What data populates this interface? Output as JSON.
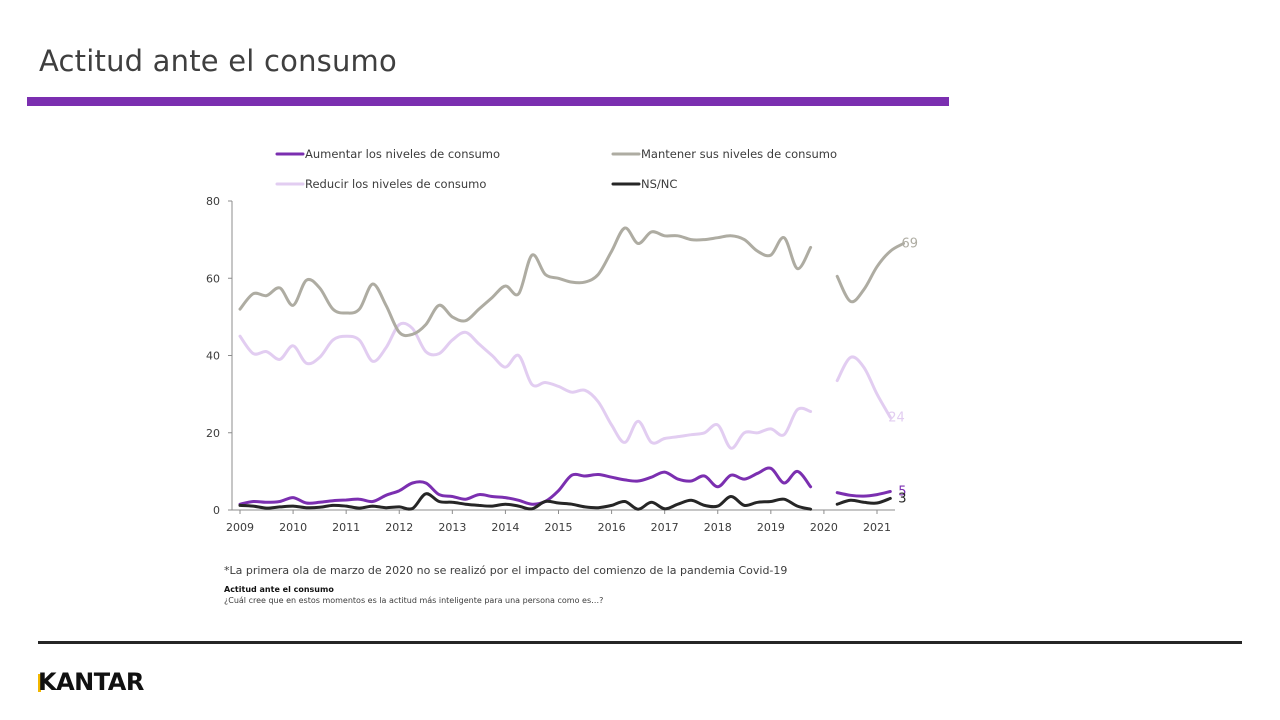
{
  "page": {
    "title": "Actitud ante el consumo",
    "footnote": "*La primera ola de marzo de 2020 no se realizó por el impacto del comienzo de la pandemia Covid-19",
    "question_title": "Actitud ante el consumo",
    "question_text": "¿Cuál cree que en estos momentos es la actitud más inteligente para una persona como es…?",
    "brand": "KANTAR",
    "colors": {
      "accent": "#7b2fb0",
      "brand_mark": "#f2b700"
    }
  },
  "chart_data": {
    "type": "line",
    "xlabel": "",
    "ylabel": "",
    "ylim": [
      0,
      80
    ],
    "yticks": [
      0,
      20,
      40,
      60,
      80
    ],
    "xticks": [
      "2009",
      "2010",
      "2011",
      "2012",
      "2013",
      "2014",
      "2015",
      "2016",
      "2017",
      "2018",
      "2019",
      "2020",
      "2021"
    ],
    "grid": false,
    "legend_position": "top",
    "series": [
      {
        "name": "Aumentar los niveles de consumo",
        "color": "#7b2fb0",
        "end_label": "5",
        "segments": [
          [
            [
              2009.0,
              1.5
            ],
            [
              2009.25,
              2.2
            ],
            [
              2009.5,
              2
            ],
            [
              2009.75,
              2.2
            ],
            [
              2010.0,
              3.2
            ],
            [
              2010.25,
              1.8
            ],
            [
              2010.5,
              2
            ],
            [
              2010.75,
              2.4
            ],
            [
              2011.0,
              2.6
            ],
            [
              2011.25,
              2.8
            ],
            [
              2011.5,
              2.2
            ],
            [
              2011.75,
              3.8
            ],
            [
              2012.0,
              5
            ],
            [
              2012.25,
              7
            ],
            [
              2012.5,
              7
            ],
            [
              2012.75,
              4
            ],
            [
              2013.0,
              3.5
            ],
            [
              2013.25,
              2.8
            ],
            [
              2013.5,
              4
            ],
            [
              2013.75,
              3.5
            ],
            [
              2014.0,
              3.2
            ],
            [
              2014.25,
              2.5
            ],
            [
              2014.5,
              1.5
            ],
            [
              2014.75,
              2.2
            ],
            [
              2015.0,
              5
            ],
            [
              2015.25,
              9
            ],
            [
              2015.5,
              8.8
            ],
            [
              2015.75,
              9.2
            ],
            [
              2016.0,
              8.5
            ],
            [
              2016.25,
              7.8
            ],
            [
              2016.5,
              7.5
            ],
            [
              2016.75,
              8.5
            ],
            [
              2017.0,
              9.8
            ],
            [
              2017.25,
              8
            ],
            [
              2017.5,
              7.5
            ],
            [
              2017.75,
              8.8
            ],
            [
              2018.0,
              6
            ],
            [
              2018.25,
              9
            ],
            [
              2018.5,
              8
            ],
            [
              2018.75,
              9.5
            ],
            [
              2019.0,
              10.8
            ],
            [
              2019.25,
              7
            ],
            [
              2019.5,
              10
            ],
            [
              2019.75,
              6
            ]
          ],
          [
            [
              2020.25,
              4.5
            ],
            [
              2020.5,
              3.8
            ],
            [
              2020.75,
              3.6
            ],
            [
              2021.0,
              4
            ],
            [
              2021.25,
              4.8
            ]
          ]
        ]
      },
      {
        "name": "Mantener sus niveles de consumo",
        "color": "#aeaca2",
        "end_label": "69",
        "segments": [
          [
            [
              2009.0,
              52
            ],
            [
              2009.25,
              56
            ],
            [
              2009.5,
              55.5
            ],
            [
              2009.75,
              57.5
            ],
            [
              2010.0,
              53
            ],
            [
              2010.25,
              59.5
            ],
            [
              2010.5,
              57.5
            ],
            [
              2010.75,
              52
            ],
            [
              2011.0,
              51
            ],
            [
              2011.25,
              52
            ],
            [
              2011.5,
              58.5
            ],
            [
              2011.75,
              53
            ],
            [
              2012.0,
              46
            ],
            [
              2012.25,
              45.5
            ],
            [
              2012.5,
              48
            ],
            [
              2012.75,
              53
            ],
            [
              2013.0,
              50
            ],
            [
              2013.25,
              49
            ],
            [
              2013.5,
              52
            ],
            [
              2013.75,
              55
            ],
            [
              2014.0,
              58
            ],
            [
              2014.25,
              56
            ],
            [
              2014.5,
              66
            ],
            [
              2014.75,
              61
            ],
            [
              2015.0,
              60
            ],
            [
              2015.25,
              59
            ],
            [
              2015.5,
              59
            ],
            [
              2015.75,
              61
            ],
            [
              2016.0,
              67
            ],
            [
              2016.25,
              73
            ],
            [
              2016.5,
              69
            ],
            [
              2016.75,
              72
            ],
            [
              2017.0,
              71
            ],
            [
              2017.25,
              71
            ],
            [
              2017.5,
              70
            ],
            [
              2017.75,
              70
            ],
            [
              2018.0,
              70.5
            ],
            [
              2018.25,
              71
            ],
            [
              2018.5,
              70
            ],
            [
              2018.75,
              67
            ],
            [
              2019.0,
              66
            ],
            [
              2019.25,
              70.5
            ],
            [
              2019.5,
              62.5
            ],
            [
              2019.75,
              68
            ]
          ],
          [
            [
              2020.25,
              60.5
            ],
            [
              2020.5,
              54
            ],
            [
              2020.75,
              57
            ],
            [
              2021.0,
              63
            ],
            [
              2021.25,
              67
            ],
            [
              2021.5,
              69
            ]
          ]
        ]
      },
      {
        "name": "Reducir los niveles de consumo",
        "color": "#e2cdf1",
        "end_label": "24",
        "segments": [
          [
            [
              2009.0,
              45
            ],
            [
              2009.25,
              40.5
            ],
            [
              2009.5,
              41
            ],
            [
              2009.75,
              39
            ],
            [
              2010.0,
              42.5
            ],
            [
              2010.25,
              38
            ],
            [
              2010.5,
              39.5
            ],
            [
              2010.75,
              44
            ],
            [
              2011.0,
              45
            ],
            [
              2011.25,
              44
            ],
            [
              2011.5,
              38.5
            ],
            [
              2011.75,
              42
            ],
            [
              2012.0,
              48
            ],
            [
              2012.25,
              47
            ],
            [
              2012.5,
              41
            ],
            [
              2012.75,
              40.5
            ],
            [
              2013.0,
              44
            ],
            [
              2013.25,
              46
            ],
            [
              2013.5,
              43
            ],
            [
              2013.75,
              40
            ],
            [
              2014.0,
              37
            ],
            [
              2014.25,
              40
            ],
            [
              2014.5,
              32.5
            ],
            [
              2014.75,
              33
            ],
            [
              2015.0,
              32
            ],
            [
              2015.25,
              30.5
            ],
            [
              2015.5,
              31
            ],
            [
              2015.75,
              28
            ],
            [
              2016.0,
              22
            ],
            [
              2016.25,
              17.5
            ],
            [
              2016.5,
              23
            ],
            [
              2016.75,
              17.5
            ],
            [
              2017.0,
              18.5
            ],
            [
              2017.25,
              19
            ],
            [
              2017.5,
              19.5
            ],
            [
              2017.75,
              20
            ],
            [
              2018.0,
              22
            ],
            [
              2018.25,
              16
            ],
            [
              2018.5,
              20
            ],
            [
              2018.75,
              20
            ],
            [
              2019.0,
              21
            ],
            [
              2019.25,
              19.5
            ],
            [
              2019.5,
              26
            ],
            [
              2019.75,
              25.5
            ]
          ],
          [
            [
              2020.25,
              33.5
            ],
            [
              2020.5,
              39.5
            ],
            [
              2020.75,
              37
            ],
            [
              2021.0,
              30
            ],
            [
              2021.25,
              24
            ]
          ]
        ]
      },
      {
        "name": "NS/NC",
        "color": "#262626",
        "end_label": "3",
        "segments": [
          [
            [
              2009.0,
              1.2
            ],
            [
              2009.25,
              1
            ],
            [
              2009.5,
              0.5
            ],
            [
              2009.75,
              0.8
            ],
            [
              2010.0,
              1
            ],
            [
              2010.25,
              0.6
            ],
            [
              2010.5,
              0.7
            ],
            [
              2010.75,
              1.2
            ],
            [
              2011.0,
              1
            ],
            [
              2011.25,
              0.5
            ],
            [
              2011.5,
              1
            ],
            [
              2011.75,
              0.6
            ],
            [
              2012.0,
              0.8
            ],
            [
              2012.25,
              0.4
            ],
            [
              2012.5,
              4.2
            ],
            [
              2012.75,
              2.2
            ],
            [
              2013.0,
              2
            ],
            [
              2013.25,
              1.5
            ],
            [
              2013.5,
              1.2
            ],
            [
              2013.75,
              1
            ],
            [
              2014.0,
              1.5
            ],
            [
              2014.25,
              1
            ],
            [
              2014.5,
              0.3
            ],
            [
              2014.75,
              2.2
            ],
            [
              2015.0,
              1.8
            ],
            [
              2015.25,
              1.5
            ],
            [
              2015.5,
              0.8
            ],
            [
              2015.75,
              0.6
            ],
            [
              2016.0,
              1.2
            ],
            [
              2016.25,
              2.2
            ],
            [
              2016.5,
              0.2
            ],
            [
              2016.75,
              2
            ],
            [
              2017.0,
              0.3
            ],
            [
              2017.25,
              1.5
            ],
            [
              2017.5,
              2.5
            ],
            [
              2017.75,
              1.2
            ],
            [
              2018.0,
              1
            ],
            [
              2018.25,
              3.5
            ],
            [
              2018.5,
              1.2
            ],
            [
              2018.75,
              2
            ],
            [
              2019.0,
              2.2
            ],
            [
              2019.25,
              2.8
            ],
            [
              2019.5,
              1
            ],
            [
              2019.75,
              0.2
            ]
          ],
          [
            [
              2020.25,
              1.5
            ],
            [
              2020.5,
              2.5
            ],
            [
              2020.75,
              2
            ],
            [
              2021.0,
              1.8
            ],
            [
              2021.25,
              3
            ]
          ]
        ]
      }
    ]
  }
}
